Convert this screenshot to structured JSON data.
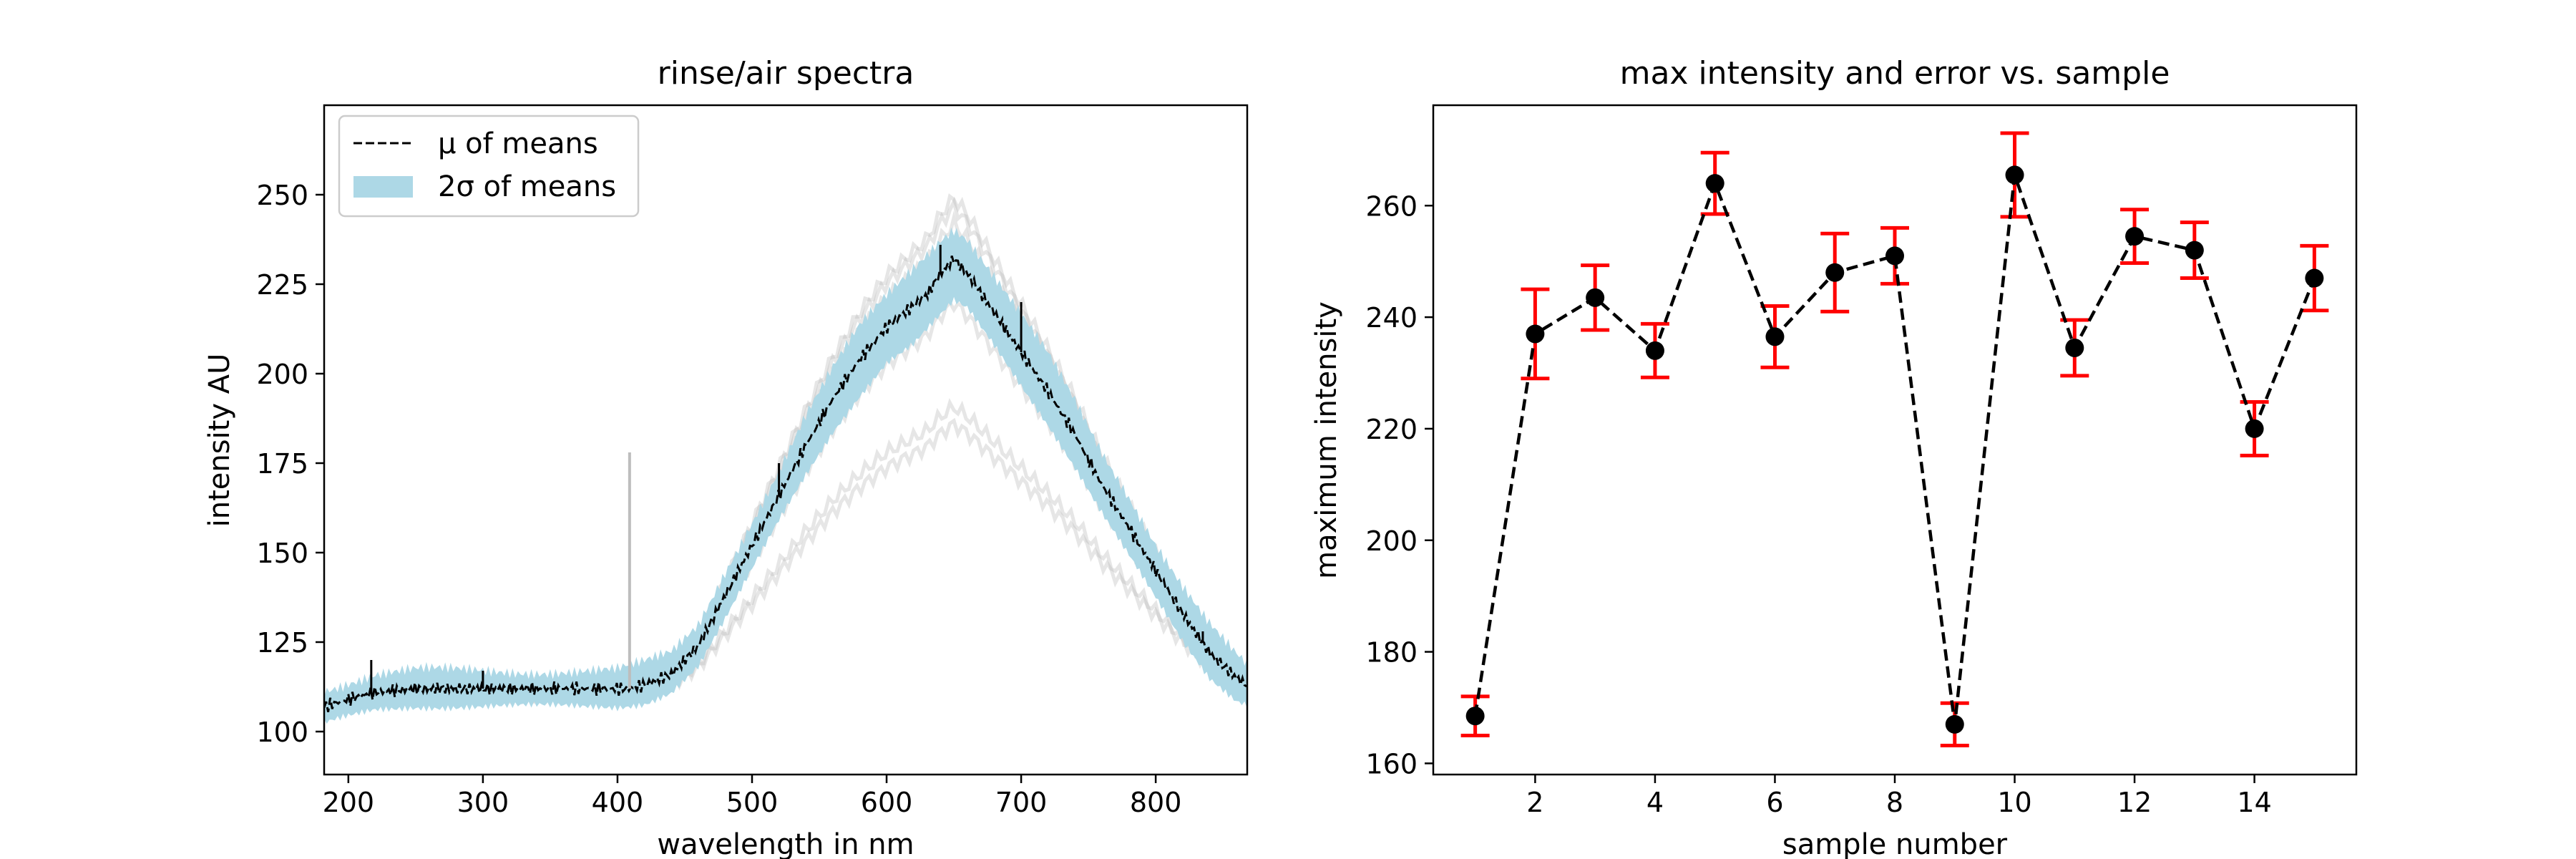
{
  "chart_data": [
    {
      "type": "line",
      "title": "rinse/air spectra",
      "xlabel": "wavelength in nm",
      "ylabel": "intensity AU",
      "xlim": [
        182,
        868
      ],
      "ylim": [
        88,
        275
      ],
      "xticks": [
        200,
        300,
        400,
        500,
        600,
        700,
        800
      ],
      "yticks": [
        100,
        125,
        150,
        175,
        200,
        225,
        250
      ],
      "grid": false,
      "legend_position": "top-left",
      "legend": [
        "µ of means",
        "2σ of means"
      ],
      "series": [
        {
          "name": "µ of means",
          "style": "dashed",
          "color": "#000000",
          "x": [
            182,
            200,
            220,
            250,
            300,
            350,
            380,
            400,
            408,
            420,
            440,
            460,
            480,
            500,
            520,
            540,
            560,
            580,
            600,
            620,
            630,
            640,
            650,
            660,
            680,
            700,
            720,
            740,
            760,
            780,
            800,
            820,
            840,
            860,
            868
          ],
          "y": [
            107,
            109,
            111,
            112,
            112,
            112,
            112,
            112,
            112,
            113,
            116,
            124,
            138,
            152,
            166,
            180,
            193,
            204,
            213,
            219,
            222,
            228,
            232,
            228,
            217,
            206,
            195,
            183,
            169,
            157,
            145,
            133,
            122,
            115,
            113
          ]
        },
        {
          "name": "2σ of means",
          "style": "band",
          "color": "#add8e6",
          "x": [
            182,
            200,
            220,
            250,
            300,
            350,
            380,
            400,
            420,
            440,
            460,
            480,
            500,
            520,
            540,
            560,
            580,
            600,
            620,
            640,
            650,
            660,
            680,
            700,
            720,
            740,
            760,
            780,
            800,
            820,
            840,
            860,
            868
          ],
          "y_low": [
            102,
            104,
            106,
            107,
            107,
            107,
            107,
            107,
            108,
            111,
            118,
            131,
            145,
            159,
            172,
            184,
            194,
            203,
            208,
            216,
            220,
            218,
            208,
            197,
            186,
            174,
            161,
            149,
            137,
            125,
            115,
            109,
            108
          ],
          "y_high": [
            112,
            114,
            116,
            117,
            117,
            117,
            117,
            117,
            119,
            122,
            130,
            145,
            159,
            173,
            188,
            201,
            213,
            222,
            230,
            238,
            241,
            238,
            227,
            216,
            205,
            192,
            178,
            166,
            153,
            141,
            130,
            121,
            118
          ]
        }
      ]
    },
    {
      "type": "scatter",
      "title": "max intensity and error vs. sample",
      "xlabel": "sample number",
      "ylabel": "maximum intensity",
      "xlim": [
        0.3,
        15.7
      ],
      "ylim": [
        158,
        278
      ],
      "xticks": [
        2,
        4,
        6,
        8,
        10,
        12,
        14
      ],
      "yticks": [
        160,
        180,
        200,
        220,
        240,
        260
      ],
      "grid": false,
      "x": [
        1,
        2,
        3,
        4,
        5,
        6,
        7,
        8,
        9,
        10,
        11,
        12,
        13,
        14,
        15
      ],
      "values": [
        168.5,
        237,
        243.5,
        234,
        264,
        236.5,
        248,
        251,
        167,
        265.5,
        234.5,
        254.5,
        252,
        220,
        247
      ],
      "error": [
        3.5,
        8,
        5.8,
        4.8,
        5.5,
        5.5,
        7,
        5,
        3.8,
        7.5,
        5,
        4.8,
        5,
        4.8,
        5.8
      ],
      "line_color": "#000000",
      "marker_color": "#000000",
      "error_color": "#ff0000"
    }
  ]
}
